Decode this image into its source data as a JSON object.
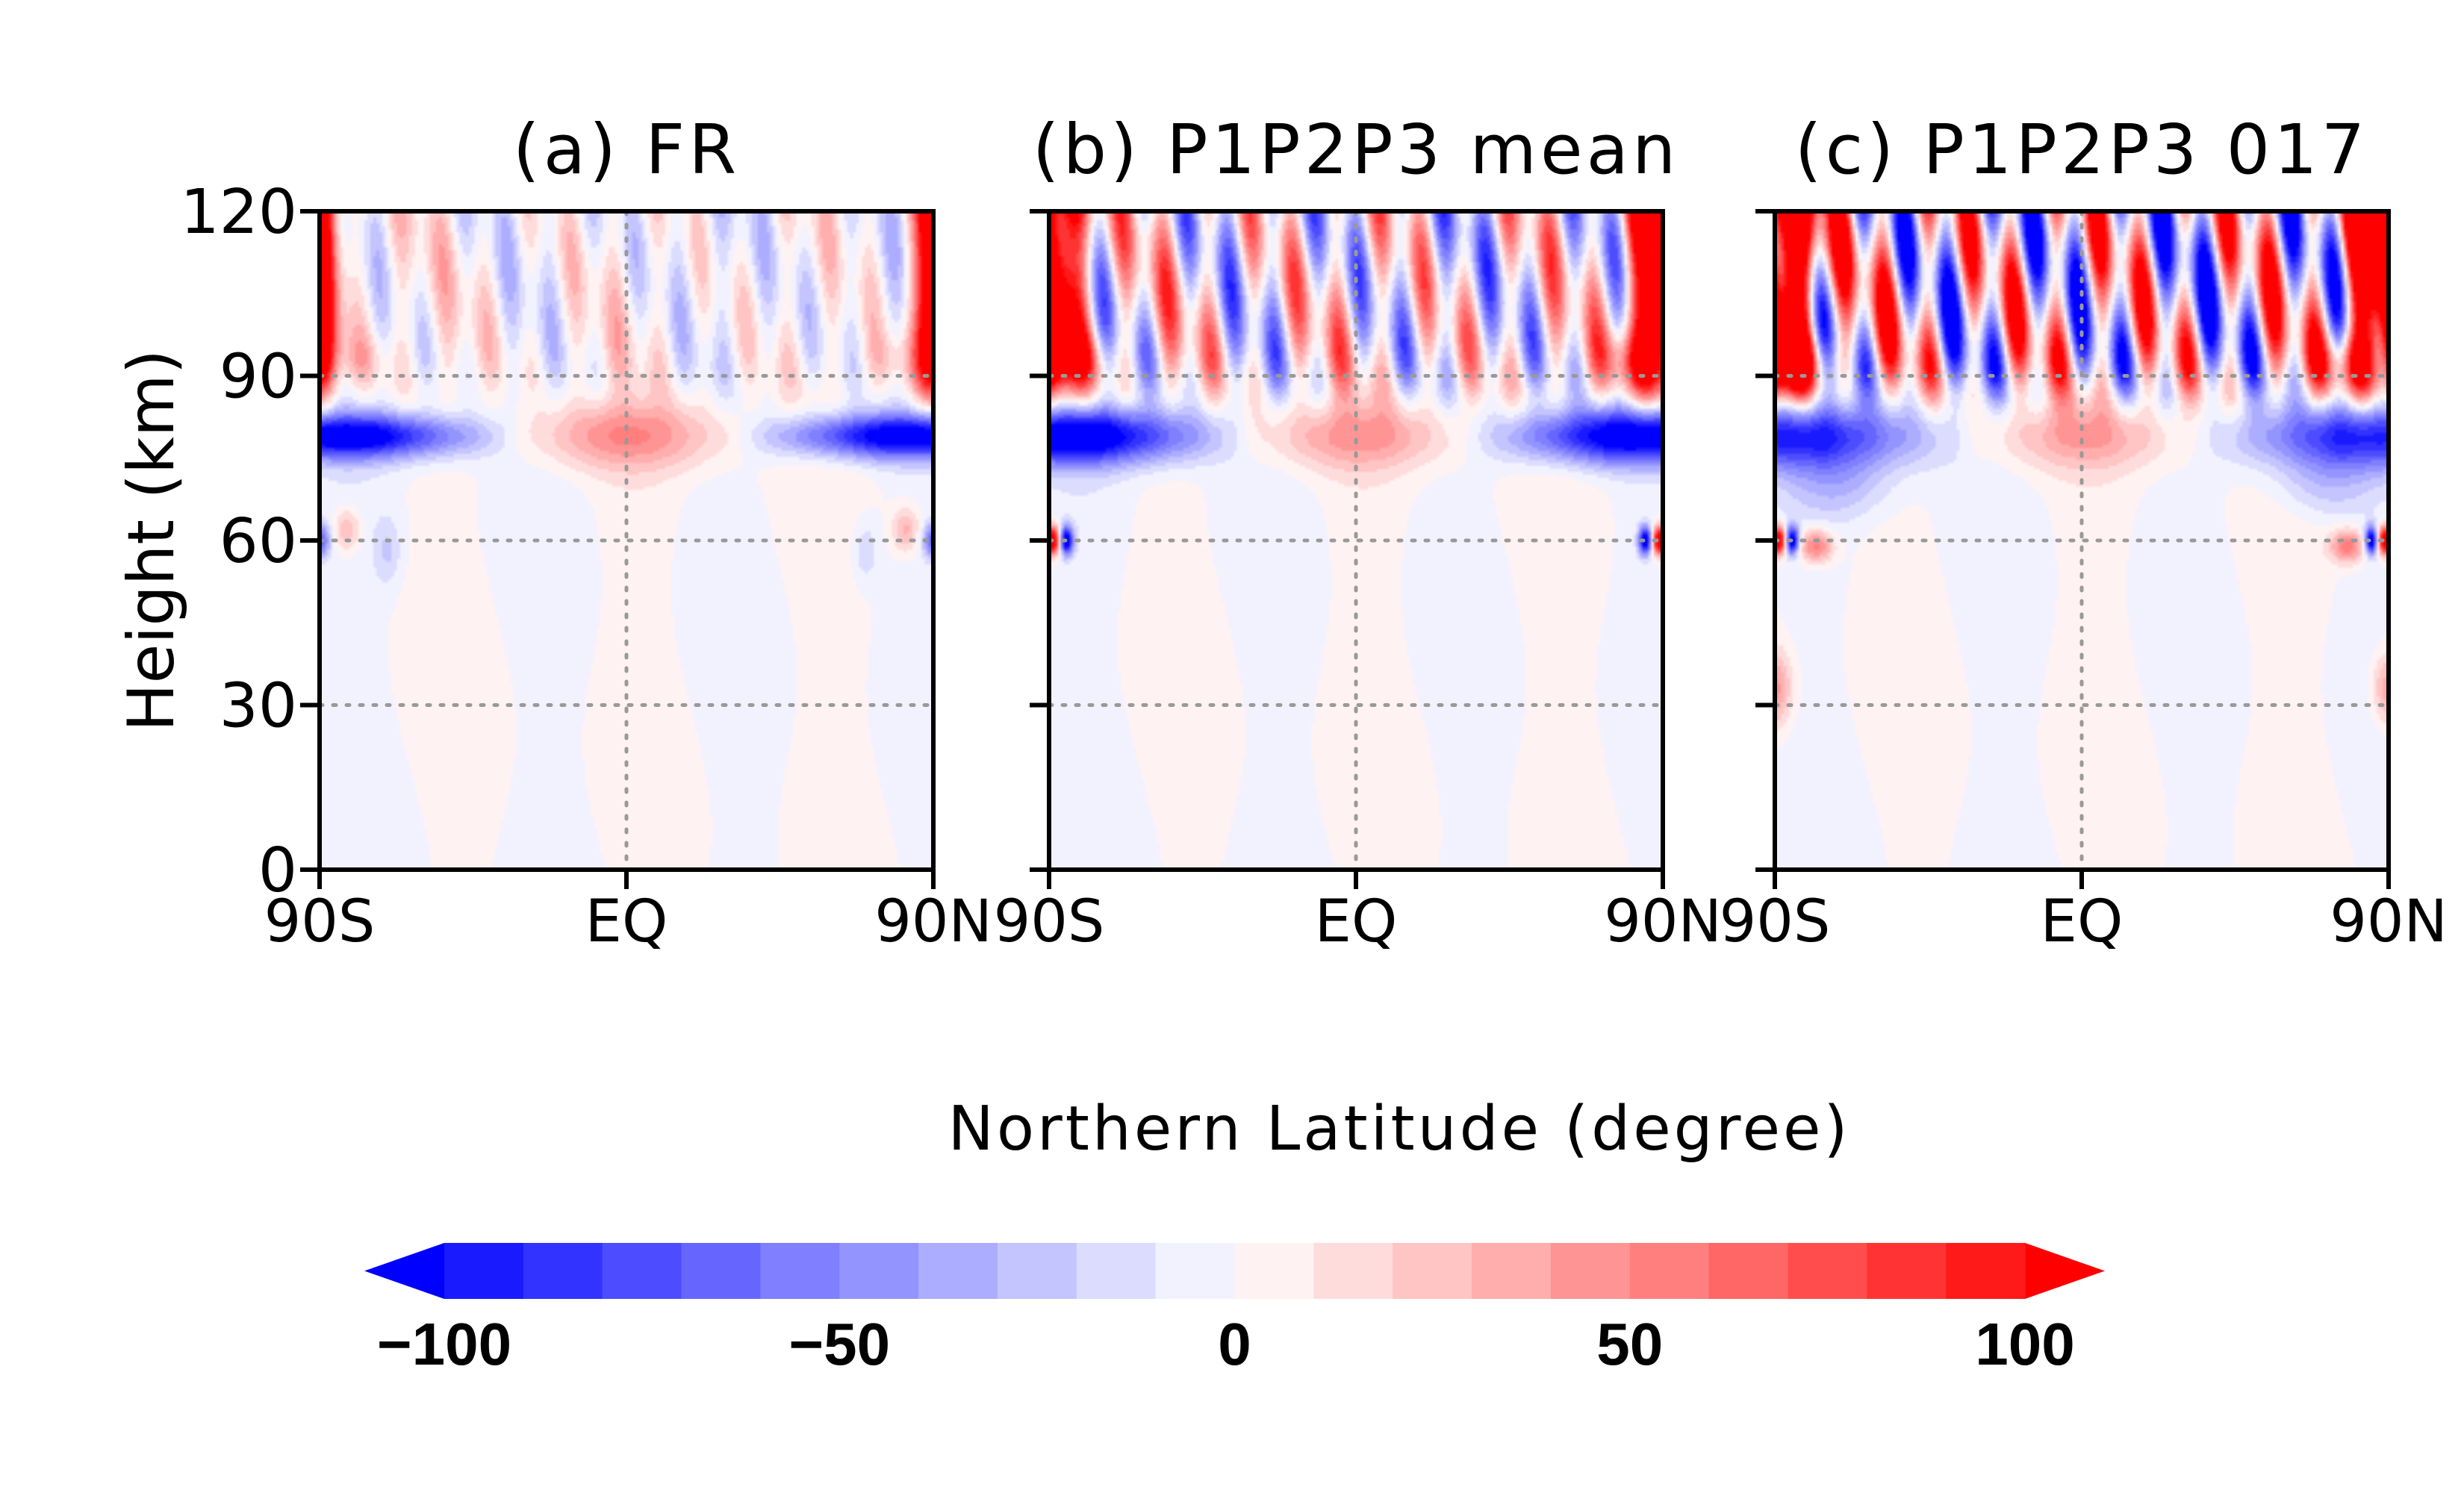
{
  "chart_data": [
    {
      "type": "heatmap",
      "title": "(a) FR",
      "xlabel": "Northern Latitude (degree)",
      "ylabel": "Height (km)",
      "x_ticks": [
        "90S",
        "EQ",
        "90N"
      ],
      "y_ticks": [
        "0",
        "30",
        "60",
        "90",
        "120"
      ],
      "xlim": [
        -90,
        90
      ],
      "ylim": [
        0,
        120
      ],
      "grid": "dotted at 30, 60, 90 km and EQ"
    },
    {
      "type": "heatmap",
      "title": "(b) P1P2P3 mean",
      "xlabel": "Northern Latitude (degree)",
      "ylabel": "Height (km)",
      "x_ticks": [
        "90S",
        "EQ",
        "90N"
      ],
      "y_ticks": [
        "0",
        "30",
        "60",
        "90",
        "120"
      ],
      "xlim": [
        -90,
        90
      ],
      "ylim": [
        0,
        120
      ],
      "grid": "dotted at 30, 60, 90 km and EQ"
    },
    {
      "type": "heatmap",
      "title": "(c) P1P2P3 017",
      "xlabel": "Northern Latitude (degree)",
      "ylabel": "Height (km)",
      "x_ticks": [
        "90S",
        "EQ",
        "90N"
      ],
      "y_ticks": [
        "0",
        "30",
        "60",
        "90",
        "120"
      ],
      "xlim": [
        -90,
        90
      ],
      "ylim": [
        0,
        120
      ],
      "grid": "dotted at 30, 60, 90 km and EQ"
    }
  ],
  "figure": {
    "ylabel": "Height (km)",
    "xlabel": "Northern Latitude (degree)"
  },
  "colorbar": {
    "levels": [
      -100,
      -90,
      -80,
      -70,
      -60,
      -50,
      -40,
      -30,
      -20,
      -10,
      0,
      10,
      20,
      30,
      40,
      50,
      60,
      70,
      80,
      90,
      100
    ],
    "labels": [
      "−100",
      "−50",
      "0",
      "50",
      "100"
    ],
    "label_values": [
      -100,
      -50,
      0,
      50,
      100
    ],
    "under_color": "#0000ff",
    "over_color": "#ff0000",
    "colors": [
      "#1a1aff",
      "#3333ff",
      "#4d4dff",
      "#6666ff",
      "#7f7fff",
      "#9494ff",
      "#adadff",
      "#c4c4ff",
      "#dcdcff",
      "#f2f2ff",
      "#fff2f2",
      "#ffdcdc",
      "#ffc4c4",
      "#ffadad",
      "#ff9494",
      "#ff7f7f",
      "#ff6666",
      "#ff4d4d",
      "#ff3333",
      "#ff1a1a"
    ],
    "extend": "both"
  }
}
